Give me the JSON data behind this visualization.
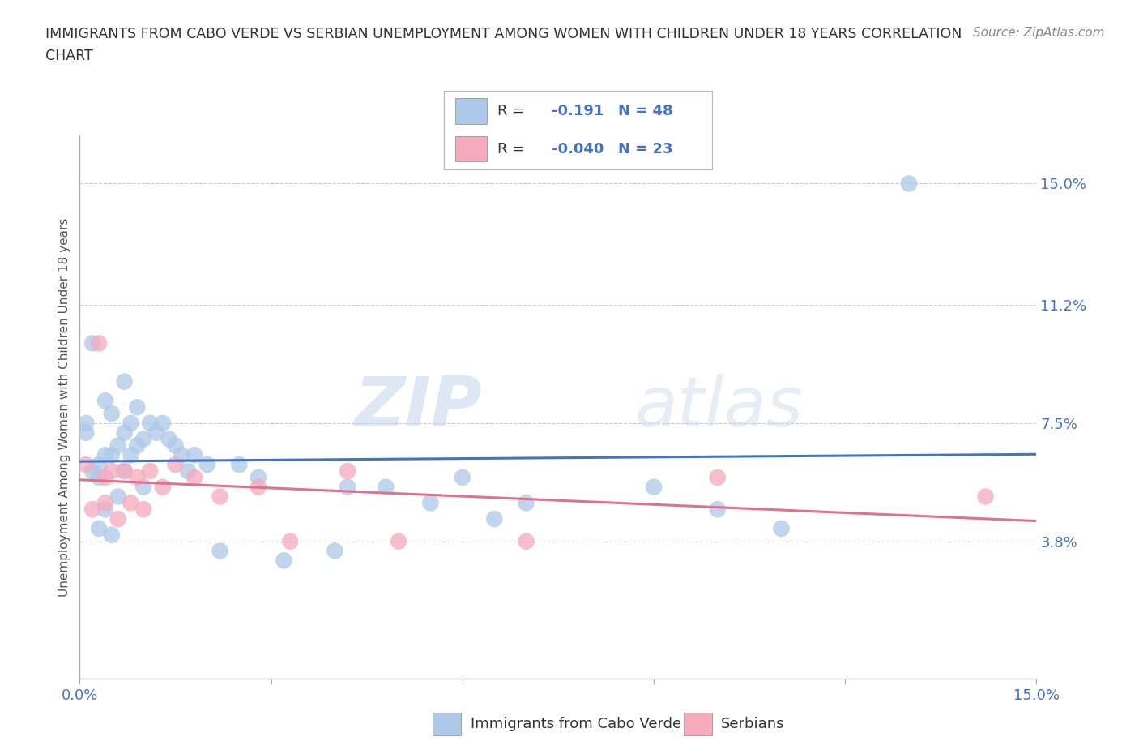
{
  "title_line1": "IMMIGRANTS FROM CABO VERDE VS SERBIAN UNEMPLOYMENT AMONG WOMEN WITH CHILDREN UNDER 18 YEARS CORRELATION",
  "title_line2": "CHART",
  "source": "Source: ZipAtlas.com",
  "ylabel": "Unemployment Among Women with Children Under 18 years",
  "xlim": [
    0.0,
    0.15
  ],
  "ylim": [
    -0.005,
    0.165
  ],
  "ytick_vals_right": [
    0.15,
    0.112,
    0.075,
    0.038
  ],
  "ytick_labels_right": [
    "15.0%",
    "11.2%",
    "7.5%",
    "3.8%"
  ],
  "cabo_verde_color": "#adc8e8",
  "serbian_color": "#f5aabe",
  "cabo_verde_line_color": "#4472c4",
  "serbian_line_color": "#e07090",
  "cabo_verde_R": -0.191,
  "cabo_verde_N": 48,
  "serbian_R": -0.04,
  "serbian_N": 23,
  "watermark_zip": "ZIP",
  "watermark_atlas": "atlas",
  "legend_label_1": "Immigrants from Cabo Verde",
  "legend_label_2": "Serbians",
  "cabo_verde_x": [
    0.001,
    0.001,
    0.002,
    0.002,
    0.003,
    0.003,
    0.003,
    0.004,
    0.004,
    0.004,
    0.005,
    0.005,
    0.005,
    0.006,
    0.006,
    0.007,
    0.007,
    0.007,
    0.008,
    0.008,
    0.009,
    0.009,
    0.01,
    0.01,
    0.011,
    0.012,
    0.013,
    0.014,
    0.015,
    0.016,
    0.017,
    0.018,
    0.02,
    0.022,
    0.025,
    0.028,
    0.032,
    0.04,
    0.042,
    0.048,
    0.055,
    0.06,
    0.065,
    0.07,
    0.09,
    0.1,
    0.11,
    0.13
  ],
  "cabo_verde_y": [
    0.075,
    0.072,
    0.1,
    0.06,
    0.058,
    0.062,
    0.042,
    0.082,
    0.065,
    0.048,
    0.078,
    0.065,
    0.04,
    0.068,
    0.052,
    0.088,
    0.072,
    0.06,
    0.075,
    0.065,
    0.08,
    0.068,
    0.07,
    0.055,
    0.075,
    0.072,
    0.075,
    0.07,
    0.068,
    0.065,
    0.06,
    0.065,
    0.062,
    0.035,
    0.062,
    0.058,
    0.032,
    0.035,
    0.055,
    0.055,
    0.05,
    0.058,
    0.045,
    0.05,
    0.055,
    0.048,
    0.042,
    0.15
  ],
  "serbian_x": [
    0.001,
    0.002,
    0.003,
    0.004,
    0.004,
    0.005,
    0.006,
    0.007,
    0.008,
    0.009,
    0.01,
    0.011,
    0.013,
    0.015,
    0.018,
    0.022,
    0.028,
    0.033,
    0.042,
    0.05,
    0.07,
    0.1,
    0.142
  ],
  "serbian_y": [
    0.062,
    0.048,
    0.1,
    0.058,
    0.05,
    0.06,
    0.045,
    0.06,
    0.05,
    0.058,
    0.048,
    0.06,
    0.055,
    0.062,
    0.058,
    0.052,
    0.055,
    0.038,
    0.06,
    0.038,
    0.038,
    0.058,
    0.052
  ],
  "background_color": "#ffffff",
  "grid_color": "#cccccc"
}
